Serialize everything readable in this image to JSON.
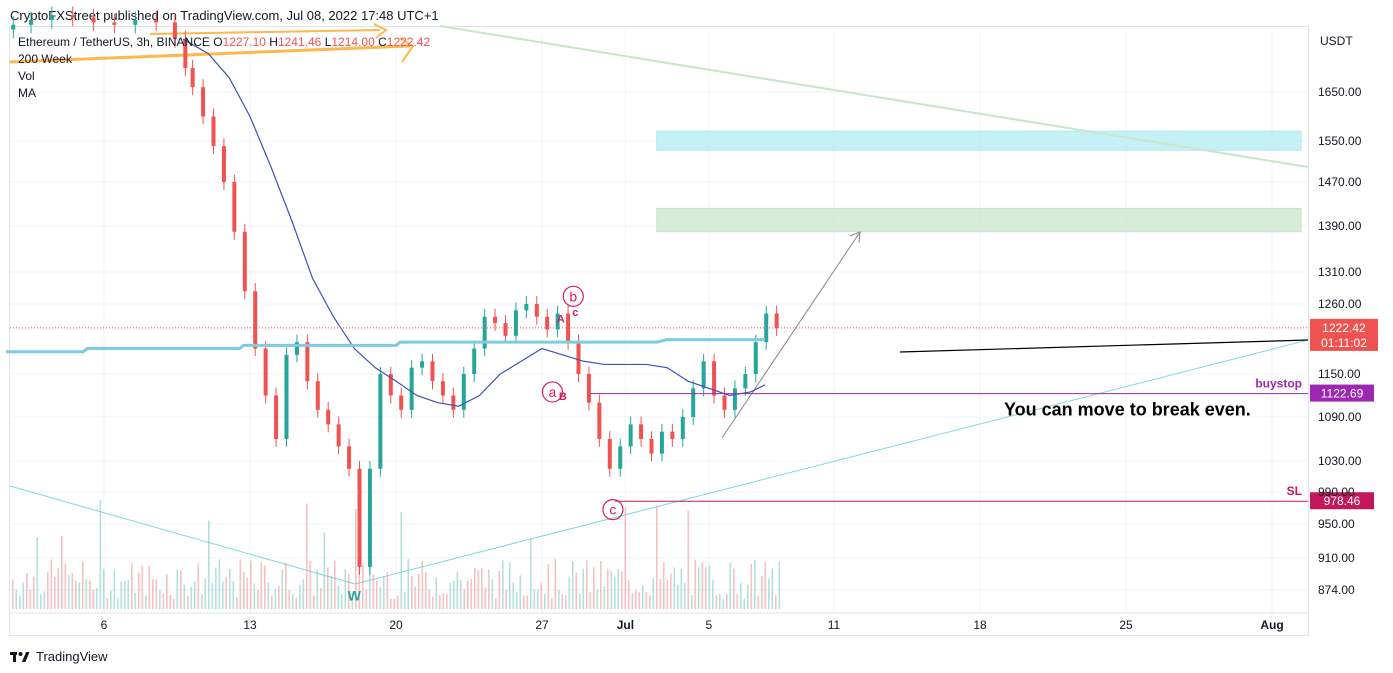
{
  "header": {
    "text": "CryptoFXStreet published on TradingView.com, Jul 08, 2022 17:48 UTC+1"
  },
  "legend": {
    "symbol": "Ethereum / TetherUS, 3h, BINANCE",
    "o_label": "O",
    "o_value": "1227.10",
    "h_label": "H",
    "h_value": "1241.46",
    "l_label": "L",
    "l_value": "1214.00",
    "c_label": "C",
    "c_value": "1222.42",
    "line2": "200 Week",
    "line3": "Vol",
    "line4": "MA"
  },
  "footer": {
    "brand": "TradingView"
  },
  "chart_data": {
    "type": "line",
    "title": "Ethereum / TetherUS, 3h, BINANCE",
    "currency_label": "USDT",
    "price_axis_ticks": [
      1650,
      1550,
      1470,
      1390,
      1310,
      1260,
      1150,
      1090,
      1030,
      990,
      950,
      910,
      874
    ],
    "price_axis_tick_labels": [
      "1650.00",
      "1550.00",
      "1470.00",
      "1390.00",
      "1310.00",
      "1260.00",
      "1150.00",
      "1090.00",
      "1030.00",
      "990.00",
      "950.00",
      "910.00",
      "874.00"
    ],
    "time_axis_labels": [
      "6",
      "13",
      "20",
      "27",
      "Jul",
      "5",
      "11",
      "18",
      "25",
      "Aug"
    ],
    "time_axis_days": [
      6,
      13,
      20,
      27,
      31,
      35,
      41,
      48,
      55,
      62
    ],
    "x_domain_days": [
      1.3,
      64.5
    ],
    "last_price": {
      "value": 1222.42,
      "label": "1222.42",
      "countdown": "01:11:02",
      "color": "#ef5350"
    },
    "levels": [
      {
        "name": "buystop",
        "value": 1122.69,
        "label": "1122.69",
        "color": "#9c27b0",
        "start_day": 29.3
      },
      {
        "name": "SL",
        "value": 978.46,
        "label": "978.46",
        "color": "#c2185b",
        "start_day": 30.5
      }
    ],
    "zones": [
      {
        "name": "upper-zone",
        "low": 1532,
        "high": 1570,
        "start_day": 32.5,
        "end_day": 63.4,
        "color": "#b2ebf2"
      },
      {
        "name": "lower-zone",
        "low": 1380,
        "high": 1422,
        "start_day": 32.5,
        "end_day": 63.4,
        "color": "#c8e6c9"
      }
    ],
    "wave_labels": [
      {
        "text": "b",
        "day": 28.5,
        "price": 1272,
        "circled": true
      },
      {
        "text": "A",
        "day": 27.9,
        "price": 1239,
        "circled": false
      },
      {
        "text": "c",
        "day": 28.6,
        "price": 1249,
        "circled": false
      },
      {
        "text": "a",
        "day": 27.5,
        "price": 1125,
        "circled": true
      },
      {
        "text": "B",
        "day": 28.0,
        "price": 1121,
        "circled": false
      },
      {
        "text": "c",
        "day": 30.4,
        "price": 968,
        "circled": true
      },
      {
        "text": "W",
        "day": 18.0,
        "price": 868,
        "circled": false
      }
    ],
    "annotation": {
      "text": "You can move to break even.",
      "day": 47.5,
      "price": 1103
    },
    "series": [
      {
        "name": "price",
        "color": "#26a69a",
        "x": [
          1.3,
          2,
          3,
          4,
          5,
          6,
          7,
          8,
          9,
          9.8,
          10,
          10.5,
          11,
          11.5,
          12,
          12.5,
          13,
          13.5,
          14,
          14.5,
          15,
          15.5,
          16,
          16.5,
          17,
          17.5,
          18,
          18.5,
          19,
          19.5,
          20,
          20.5,
          21,
          21.5,
          22,
          22.5,
          23,
          23.5,
          24,
          24.5,
          25,
          25.5,
          26,
          26.5,
          27,
          27.5,
          28,
          28.5,
          29,
          29.5,
          30,
          30.5,
          31,
          31.5,
          32,
          32.5,
          33,
          33.5,
          34,
          34.5,
          35,
          35.5,
          36,
          36.5,
          37,
          37.5,
          38,
          38.5
        ],
        "values": [
          1780,
          1790,
          1800,
          1810,
          1805,
          1795,
          1790,
          1800,
          1795,
          1760,
          1700,
          1660,
          1600,
          1540,
          1470,
          1380,
          1280,
          1190,
          1120,
          1060,
          1180,
          1200,
          1140,
          1100,
          1080,
          1050,
          1020,
          900,
          1020,
          1150,
          1120,
          1100,
          1160,
          1170,
          1140,
          1120,
          1100,
          1150,
          1190,
          1240,
          1230,
          1210,
          1250,
          1260,
          1240,
          1220,
          1245,
          1200,
          1150,
          1110,
          1060,
          1020,
          1050,
          1080,
          1060,
          1040,
          1070,
          1060,
          1090,
          1130,
          1170,
          1120,
          1100,
          1130,
          1150,
          1200,
          1245,
          1222
        ]
      },
      {
        "name": "MA",
        "color": "#3f51b5",
        "x": [
          9.8,
          11,
          12,
          13,
          14,
          15,
          16,
          17,
          18,
          19,
          20,
          21,
          22,
          23,
          24,
          25,
          26,
          27,
          28,
          29,
          30,
          31,
          32,
          33,
          34,
          35,
          36,
          37,
          37.7
        ],
        "values": [
          1760,
          1730,
          1680,
          1600,
          1500,
          1400,
          1300,
          1240,
          1190,
          1160,
          1140,
          1120,
          1110,
          1105,
          1120,
          1150,
          1170,
          1190,
          1180,
          1170,
          1165,
          1165,
          1165,
          1160,
          1140,
          1130,
          1120,
          1125,
          1135
        ]
      },
      {
        "name": "200 Week",
        "color": "#7ecbe3",
        "x": [
          1.3,
          5,
          5.2,
          12.5,
          12.7,
          20,
          20.2,
          32.5,
          33,
          37.7
        ],
        "values": [
          1185,
          1185,
          1190,
          1190,
          1195,
          1195,
          1200,
          1200,
          1204,
          1204
        ]
      }
    ],
    "volume": {
      "name": "Vol",
      "up_color": "#80cbc4",
      "down_color": "#ef9a9a"
    }
  }
}
